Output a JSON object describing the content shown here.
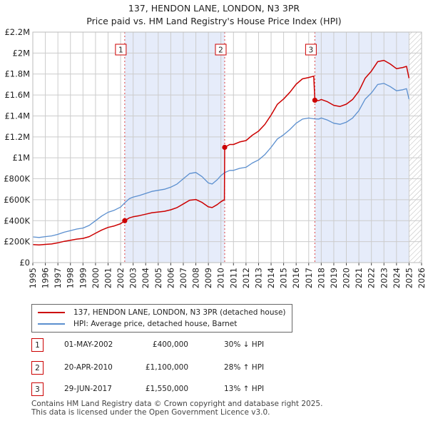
{
  "page": {
    "title_line1": "137, HENDON LANE, LONDON, N3 3PR",
    "title_line2": "Price paid vs. HM Land Registry's House Price Index (HPI)"
  },
  "legend": {
    "property_label": "137, HENDON LANE, LONDON, N3 3PR (detached house)",
    "hpi_label": "HPI: Average price, detached house, Barnet",
    "property_color": "#cc0000",
    "hpi_color": "#5b8fcf"
  },
  "transactions": [
    {
      "num": "1",
      "date": "01-MAY-2002",
      "price": "£400,000",
      "hpi": "30% ↓ HPI"
    },
    {
      "num": "2",
      "date": "20-APR-2010",
      "price": "£1,100,000",
      "hpi": "28% ↑ HPI"
    },
    {
      "num": "3",
      "date": "29-JUN-2017",
      "price": "£1,550,000",
      "hpi": "13% ↑ HPI"
    }
  ],
  "footer": {
    "line1": "Contains HM Land Registry data © Crown copyright and database right 2025.",
    "line2": "This data is licensed under the Open Government Licence v3.0."
  },
  "chart_data": {
    "type": "line",
    "title": "137, HENDON LANE, LONDON, N3 3PR",
    "subtitle": "Price paid vs. HM Land Registry's House Price Index (HPI)",
    "xlabel": "",
    "ylabel": "",
    "xlim": [
      1995,
      2026
    ],
    "ylim": [
      0,
      2200000
    ],
    "x_ticks": [
      "1995",
      "1996",
      "1997",
      "1998",
      "1999",
      "2000",
      "2001",
      "2002",
      "2003",
      "2004",
      "2005",
      "2006",
      "2007",
      "2008",
      "2009",
      "2010",
      "2011",
      "2012",
      "2013",
      "2014",
      "2015",
      "2016",
      "2017",
      "2018",
      "2019",
      "2020",
      "2021",
      "2022",
      "2023",
      "2024",
      "2025",
      "2026"
    ],
    "y_ticks": [
      {
        "value": 0,
        "label": "£0"
      },
      {
        "value": 200000,
        "label": "£200K"
      },
      {
        "value": 400000,
        "label": "£400K"
      },
      {
        "value": 600000,
        "label": "£600K"
      },
      {
        "value": 800000,
        "label": "£800K"
      },
      {
        "value": 1000000,
        "label": "£1M"
      },
      {
        "value": 1200000,
        "label": "£1.2M"
      },
      {
        "value": 1400000,
        "label": "£1.4M"
      },
      {
        "value": 1600000,
        "label": "£1.6M"
      },
      {
        "value": 1800000,
        "label": "£1.8M"
      },
      {
        "value": 2000000,
        "label": "£2M"
      },
      {
        "value": 2200000,
        "label": "£2.2M"
      }
    ],
    "grid": true,
    "shaded_periods": [
      [
        2002.33,
        2010.3
      ],
      [
        2017.49,
        2025.0
      ]
    ],
    "hatched_after": 2025.0,
    "sales": [
      {
        "label": "1",
        "x": 2002.33,
        "y": 400000
      },
      {
        "label": "2",
        "x": 2010.3,
        "y": 1100000
      },
      {
        "label": "3",
        "x": 2017.49,
        "y": 1550000
      }
    ],
    "series": [
      {
        "name": "HPI: Average price, detached house, Barnet",
        "color": "#5b8fcf",
        "points": [
          [
            1995,
            245000
          ],
          [
            1995.5,
            240000
          ],
          [
            1996,
            248000
          ],
          [
            1996.5,
            255000
          ],
          [
            1997,
            270000
          ],
          [
            1997.5,
            290000
          ],
          [
            1998,
            305000
          ],
          [
            1998.5,
            320000
          ],
          [
            1999,
            330000
          ],
          [
            1999.5,
            355000
          ],
          [
            2000,
            400000
          ],
          [
            2000.5,
            445000
          ],
          [
            2001,
            480000
          ],
          [
            2001.5,
            500000
          ],
          [
            2002,
            530000
          ],
          [
            2002.33,
            571000
          ],
          [
            2002.7,
            610000
          ],
          [
            2003,
            625000
          ],
          [
            2003.5,
            640000
          ],
          [
            2004,
            660000
          ],
          [
            2004.5,
            680000
          ],
          [
            2005,
            690000
          ],
          [
            2005.5,
            700000
          ],
          [
            2006,
            720000
          ],
          [
            2006.5,
            750000
          ],
          [
            2007,
            800000
          ],
          [
            2007.5,
            850000
          ],
          [
            2008,
            860000
          ],
          [
            2008.5,
            820000
          ],
          [
            2009,
            760000
          ],
          [
            2009.3,
            750000
          ],
          [
            2009.7,
            790000
          ],
          [
            2010,
            830000
          ],
          [
            2010.3,
            859000
          ],
          [
            2010.7,
            880000
          ],
          [
            2011,
            880000
          ],
          [
            2011.5,
            900000
          ],
          [
            2012,
            910000
          ],
          [
            2012.5,
            950000
          ],
          [
            2013,
            980000
          ],
          [
            2013.5,
            1030000
          ],
          [
            2014,
            1100000
          ],
          [
            2014.5,
            1180000
          ],
          [
            2015,
            1220000
          ],
          [
            2015.5,
            1270000
          ],
          [
            2016,
            1330000
          ],
          [
            2016.5,
            1370000
          ],
          [
            2017,
            1380000
          ],
          [
            2017.49,
            1372000
          ],
          [
            2017.8,
            1370000
          ],
          [
            2018,
            1380000
          ],
          [
            2018.5,
            1360000
          ],
          [
            2019,
            1330000
          ],
          [
            2019.5,
            1320000
          ],
          [
            2020,
            1340000
          ],
          [
            2020.5,
            1380000
          ],
          [
            2021,
            1450000
          ],
          [
            2021.5,
            1560000
          ],
          [
            2022,
            1620000
          ],
          [
            2022.5,
            1700000
          ],
          [
            2023,
            1710000
          ],
          [
            2023.5,
            1680000
          ],
          [
            2024,
            1640000
          ],
          [
            2024.5,
            1650000
          ],
          [
            2024.8,
            1660000
          ],
          [
            2025,
            1560000
          ]
        ]
      },
      {
        "name": "137, HENDON LANE, LONDON, N3 3PR (detached house)",
        "color": "#cc0000",
        "points": [
          [
            1995,
            172000
          ],
          [
            1995.5,
            168000
          ],
          [
            1996,
            174000
          ],
          [
            1996.5,
            178000
          ],
          [
            1997,
            189000
          ],
          [
            1997.5,
            203000
          ],
          [
            1998,
            213000
          ],
          [
            1998.5,
            224000
          ],
          [
            1999,
            231000
          ],
          [
            1999.5,
            248000
          ],
          [
            2000,
            280000
          ],
          [
            2000.5,
            311000
          ],
          [
            2001,
            336000
          ],
          [
            2001.5,
            350000
          ],
          [
            2002,
            371000
          ],
          [
            2002.33,
            400000
          ],
          [
            2002.7,
            427000
          ],
          [
            2003,
            437000
          ],
          [
            2003.5,
            448000
          ],
          [
            2004,
            462000
          ],
          [
            2004.5,
            476000
          ],
          [
            2005,
            483000
          ],
          [
            2005.5,
            490000
          ],
          [
            2006,
            504000
          ],
          [
            2006.5,
            525000
          ],
          [
            2007,
            560000
          ],
          [
            2007.5,
            595000
          ],
          [
            2008,
            602000
          ],
          [
            2008.5,
            574000
          ],
          [
            2009,
            532000
          ],
          [
            2009.3,
            525000
          ],
          [
            2009.7,
            553000
          ],
          [
            2010,
            581000
          ],
          [
            2010.28,
            601000
          ],
          [
            2010.3,
            1100000
          ],
          [
            2010.7,
            1127000
          ],
          [
            2011,
            1127000
          ],
          [
            2011.5,
            1152000
          ],
          [
            2012,
            1165000
          ],
          [
            2012.5,
            1216000
          ],
          [
            2013,
            1255000
          ],
          [
            2013.5,
            1318000
          ],
          [
            2014,
            1408000
          ],
          [
            2014.5,
            1511000
          ],
          [
            2015,
            1562000
          ],
          [
            2015.5,
            1626000
          ],
          [
            2016,
            1703000
          ],
          [
            2016.5,
            1754000
          ],
          [
            2017,
            1767000
          ],
          [
            2017.4,
            1780000
          ],
          [
            2017.49,
            1550000
          ],
          [
            2017.8,
            1546000
          ],
          [
            2018,
            1557000
          ],
          [
            2018.5,
            1535000
          ],
          [
            2019,
            1501000
          ],
          [
            2019.5,
            1490000
          ],
          [
            2020,
            1512000
          ],
          [
            2020.5,
            1557000
          ],
          [
            2021,
            1636000
          ],
          [
            2021.5,
            1760000
          ],
          [
            2022,
            1828000
          ],
          [
            2022.5,
            1918000
          ],
          [
            2023,
            1930000
          ],
          [
            2023.5,
            1896000
          ],
          [
            2024,
            1851000
          ],
          [
            2024.5,
            1862000
          ],
          [
            2024.8,
            1873000
          ],
          [
            2025,
            1760000
          ]
        ]
      }
    ]
  }
}
